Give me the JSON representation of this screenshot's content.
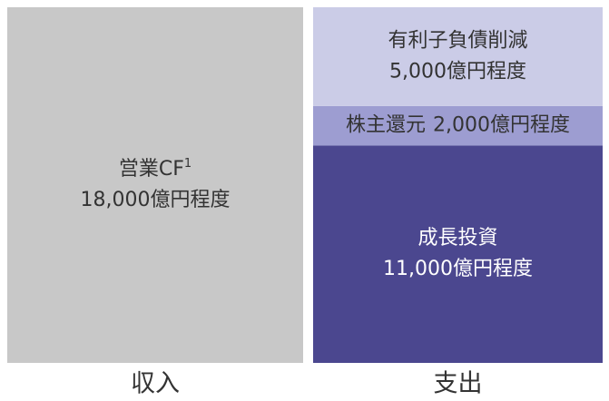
{
  "chart_data": {
    "type": "bar",
    "stacked": true,
    "categories": [
      "収入",
      "支出"
    ],
    "series": [
      {
        "name": "営業CF",
        "name_superscript": "1",
        "color": "#c8c8c8",
        "text_color": "#333333",
        "values": [
          18000,
          null
        ],
        "value_labels": [
          "18,000億円程度",
          null
        ]
      },
      {
        "name": "成長投資",
        "color": "#4b478f",
        "text_color": "#ffffff",
        "values": [
          null,
          11000
        ],
        "value_labels": [
          null,
          "11,000億円程度"
        ]
      },
      {
        "name": "株主還元",
        "color": "#9d9dd1",
        "text_color": "#333333",
        "label_inline": true,
        "values": [
          null,
          2000
        ],
        "value_labels": [
          null,
          "2,000億円程度"
        ]
      },
      {
        "name": "有利子負債削減",
        "color": "#cbcce7",
        "text_color": "#333333",
        "values": [
          null,
          5000
        ],
        "value_labels": [
          null,
          "5,000億円程度"
        ]
      }
    ]
  }
}
